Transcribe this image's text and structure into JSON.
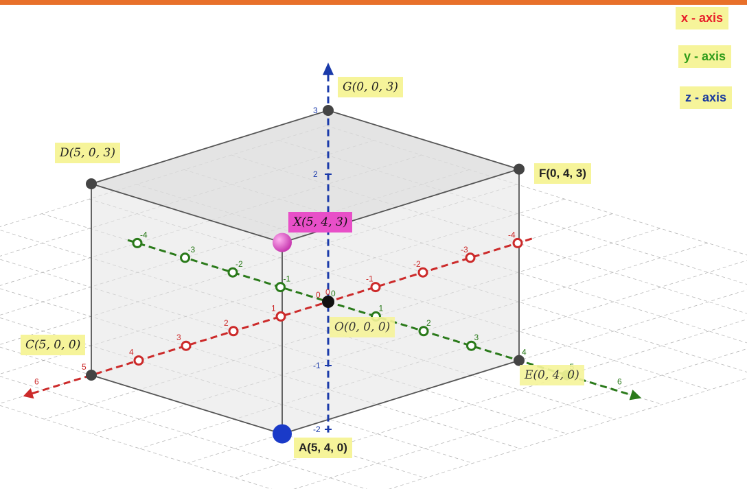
{
  "header_bar": {
    "color": "#e8702a"
  },
  "legend": [
    {
      "id": "x",
      "label": "x - axis",
      "text_color": "#e8202a",
      "bg": "#f6f49a"
    },
    {
      "id": "y",
      "label": "y - axis",
      "text_color": "#2f9c1a",
      "bg": "#f6f49a"
    },
    {
      "id": "z",
      "label": "z - axis",
      "text_color": "#1a3a9e",
      "bg": "#f6f49a"
    }
  ],
  "points": [
    {
      "id": "G",
      "label": "G(0, 0, 3)",
      "style": "math",
      "bg": "#f6f49a",
      "coords": [
        0,
        0,
        3
      ]
    },
    {
      "id": "D",
      "label": "D(5, 0, 3)",
      "style": "math",
      "bg": "#f6f49a",
      "coords": [
        5,
        0,
        3
      ]
    },
    {
      "id": "F",
      "label": "F(0, 4, 3)",
      "style": "plain",
      "bg": "#f6f49a",
      "coords": [
        0,
        4,
        3
      ]
    },
    {
      "id": "X",
      "label": "X(5, 4, 3)",
      "style": "math",
      "bg": "#e84fc8",
      "coords": [
        5,
        4,
        3
      ]
    },
    {
      "id": "O",
      "label": "O(0, 0, 0)",
      "style": "math",
      "bg": "#f6f49a",
      "coords": [
        0,
        0,
        0
      ]
    },
    {
      "id": "C",
      "label": "C(5, 0, 0)",
      "style": "math",
      "bg": "#f6f49a",
      "coords": [
        5,
        0,
        0
      ]
    },
    {
      "id": "E",
      "label": "E(0, 4, 0)",
      "style": "math",
      "bg": "#f6f49a",
      "coords": [
        0,
        4,
        0
      ]
    },
    {
      "id": "A",
      "label": "A(5, 4, 0)",
      "style": "plain",
      "bg": "#f6f49a",
      "coords": [
        5,
        4,
        0
      ]
    }
  ],
  "axes": {
    "x": {
      "color": "#cc2a2a",
      "ticks": [
        "-4",
        "-3",
        "-2",
        "-1",
        "0",
        "1",
        "2",
        "3",
        "4",
        "5",
        "6"
      ]
    },
    "y": {
      "color": "#2a7a1a",
      "ticks": [
        "-4",
        "-3",
        "-2",
        "-1",
        "0",
        "1",
        "2",
        "3",
        "4",
        "5",
        "6"
      ]
    },
    "z": {
      "color": "#1a3aaa",
      "ticks": [
        "-2",
        "-1",
        "0",
        "2",
        "3"
      ]
    }
  },
  "colors": {
    "cube_fill": "#e4e4e4",
    "cube_edge": "#555555",
    "vertex": "#444444",
    "grid": "#9a9a9a"
  }
}
